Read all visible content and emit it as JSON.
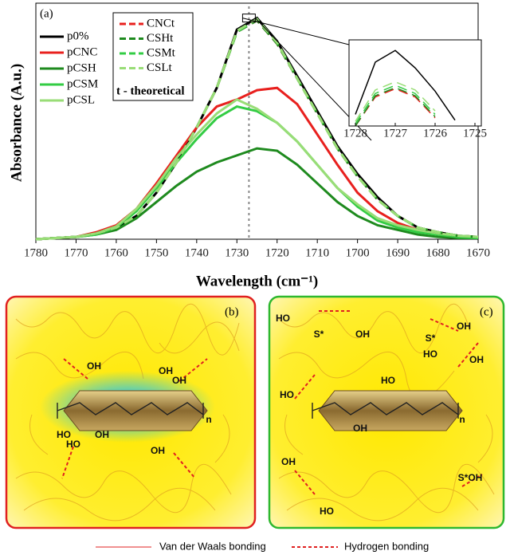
{
  "chart_data": {
    "type": "line",
    "panel_label": "(a)",
    "xlabel": "Wavelength (cm⁻¹)",
    "ylabel": "Absorbance (A.u.)",
    "x": [
      1780,
      1775,
      1770,
      1765,
      1760,
      1755,
      1750,
      1745,
      1740,
      1735,
      1730,
      1725,
      1720,
      1715,
      1710,
      1705,
      1700,
      1695,
      1690,
      1685,
      1680,
      1675,
      1670
    ],
    "xlim": [
      1780,
      1670
    ],
    "xticks": [
      1780,
      1770,
      1760,
      1750,
      1740,
      1730,
      1720,
      1710,
      1700,
      1690,
      1680,
      1670
    ],
    "ylim": [
      0,
      1
    ],
    "vline": 1727,
    "annotation": "t - theoretical",
    "series": [
      {
        "name": "p0%",
        "color": "#000000",
        "dash": false,
        "values": [
          0,
          0.005,
          0.01,
          0.025,
          0.05,
          0.1,
          0.2,
          0.33,
          0.48,
          0.65,
          0.9,
          0.95,
          0.85,
          0.7,
          0.55,
          0.4,
          0.28,
          0.18,
          0.1,
          0.05,
          0.03,
          0.015,
          0.01
        ]
      },
      {
        "name": "pCNC",
        "color": "#e8201e",
        "dash": false,
        "values": [
          0,
          0.005,
          0.01,
          0.03,
          0.06,
          0.13,
          0.24,
          0.36,
          0.48,
          0.57,
          0.6,
          0.64,
          0.65,
          0.58,
          0.45,
          0.32,
          0.2,
          0.12,
          0.07,
          0.04,
          0.02,
          0.01,
          0.005
        ]
      },
      {
        "name": "pCSH",
        "color": "#1e8a1e",
        "dash": false,
        "values": [
          0,
          0.005,
          0.01,
          0.02,
          0.04,
          0.09,
          0.16,
          0.23,
          0.29,
          0.33,
          0.36,
          0.39,
          0.38,
          0.32,
          0.24,
          0.16,
          0.1,
          0.06,
          0.04,
          0.02,
          0.01,
          0.005,
          0.005
        ]
      },
      {
        "name": "pCSM",
        "color": "#33cc44",
        "dash": false,
        "values": [
          0,
          0.005,
          0.01,
          0.02,
          0.05,
          0.12,
          0.22,
          0.33,
          0.43,
          0.52,
          0.57,
          0.55,
          0.5,
          0.42,
          0.32,
          0.22,
          0.14,
          0.08,
          0.05,
          0.03,
          0.02,
          0.01,
          0.005
        ]
      },
      {
        "name": "pCSL",
        "color": "#99dd77",
        "dash": false,
        "values": [
          0,
          0.005,
          0.01,
          0.025,
          0.055,
          0.13,
          0.23,
          0.35,
          0.45,
          0.54,
          0.6,
          0.56,
          0.5,
          0.42,
          0.32,
          0.22,
          0.15,
          0.09,
          0.06,
          0.04,
          0.025,
          0.015,
          0.01
        ]
      },
      {
        "name": "CNCt",
        "color": "#e8201e",
        "dash": true,
        "values": [
          0,
          0.005,
          0.01,
          0.025,
          0.05,
          0.1,
          0.2,
          0.33,
          0.48,
          0.65,
          0.89,
          0.94,
          0.84,
          0.69,
          0.54,
          0.39,
          0.27,
          0.17,
          0.1,
          0.05,
          0.03,
          0.015,
          0.01
        ]
      },
      {
        "name": "CSHt",
        "color": "#1e8a1e",
        "dash": true,
        "values": [
          0,
          0.005,
          0.01,
          0.025,
          0.05,
          0.1,
          0.2,
          0.33,
          0.48,
          0.65,
          0.89,
          0.94,
          0.84,
          0.69,
          0.54,
          0.39,
          0.27,
          0.17,
          0.1,
          0.05,
          0.03,
          0.015,
          0.01
        ]
      },
      {
        "name": "CSMt",
        "color": "#33cc44",
        "dash": true,
        "values": [
          0,
          0.005,
          0.01,
          0.025,
          0.05,
          0.1,
          0.2,
          0.33,
          0.48,
          0.65,
          0.89,
          0.945,
          0.845,
          0.69,
          0.54,
          0.39,
          0.27,
          0.17,
          0.1,
          0.05,
          0.03,
          0.015,
          0.01
        ]
      },
      {
        "name": "CSLt",
        "color": "#99dd77",
        "dash": true,
        "values": [
          0,
          0.005,
          0.01,
          0.025,
          0.05,
          0.1,
          0.2,
          0.33,
          0.48,
          0.65,
          0.895,
          0.945,
          0.845,
          0.69,
          0.54,
          0.39,
          0.27,
          0.17,
          0.1,
          0.05,
          0.03,
          0.015,
          0.01
        ]
      }
    ],
    "inset": {
      "x": [
        1728,
        1727.5,
        1727,
        1726.5,
        1726,
        1725.5,
        1725
      ],
      "xlim": [
        1728,
        1725
      ],
      "xticks": [
        1728,
        1727,
        1726,
        1725
      ],
      "ylim": [
        0.93,
        1
      ],
      "series": [
        {
          "color": "#000000",
          "dash": false,
          "values": [
            0.94,
            0.985,
            0.995,
            0.98,
            0.96,
            0.935,
            null
          ]
        },
        {
          "color": "#e8201e",
          "dash": true,
          "values": [
            0.93,
            0.955,
            0.962,
            0.955,
            0.937,
            null,
            null
          ]
        },
        {
          "color": "#1e8a1e",
          "dash": true,
          "values": [
            0.93,
            0.956,
            0.963,
            0.956,
            0.938,
            null,
            null
          ]
        },
        {
          "color": "#33cc44",
          "dash": true,
          "values": [
            0.932,
            0.958,
            0.965,
            0.958,
            0.94,
            null,
            null
          ]
        },
        {
          "color": "#99dd77",
          "dash": true,
          "values": [
            0.934,
            0.961,
            0.968,
            0.961,
            0.943,
            null,
            null
          ]
        }
      ]
    }
  },
  "diagrams": [
    {
      "label": "(b)",
      "labels": [
        "OH",
        "OH",
        "OH",
        "HO",
        "OH",
        "HO",
        "OH",
        "n"
      ]
    },
    {
      "label": "(c)",
      "labels": [
        "HO",
        "S*",
        "OH",
        "HO",
        "S*",
        "OH",
        "HO",
        "OH",
        "HO",
        "S*OH",
        "HO",
        "n",
        "OH",
        "OH"
      ]
    }
  ],
  "bottom_legend": {
    "van_der_waals": "Van der Waals bonding",
    "hydrogen": "Hydrogen bonding"
  }
}
